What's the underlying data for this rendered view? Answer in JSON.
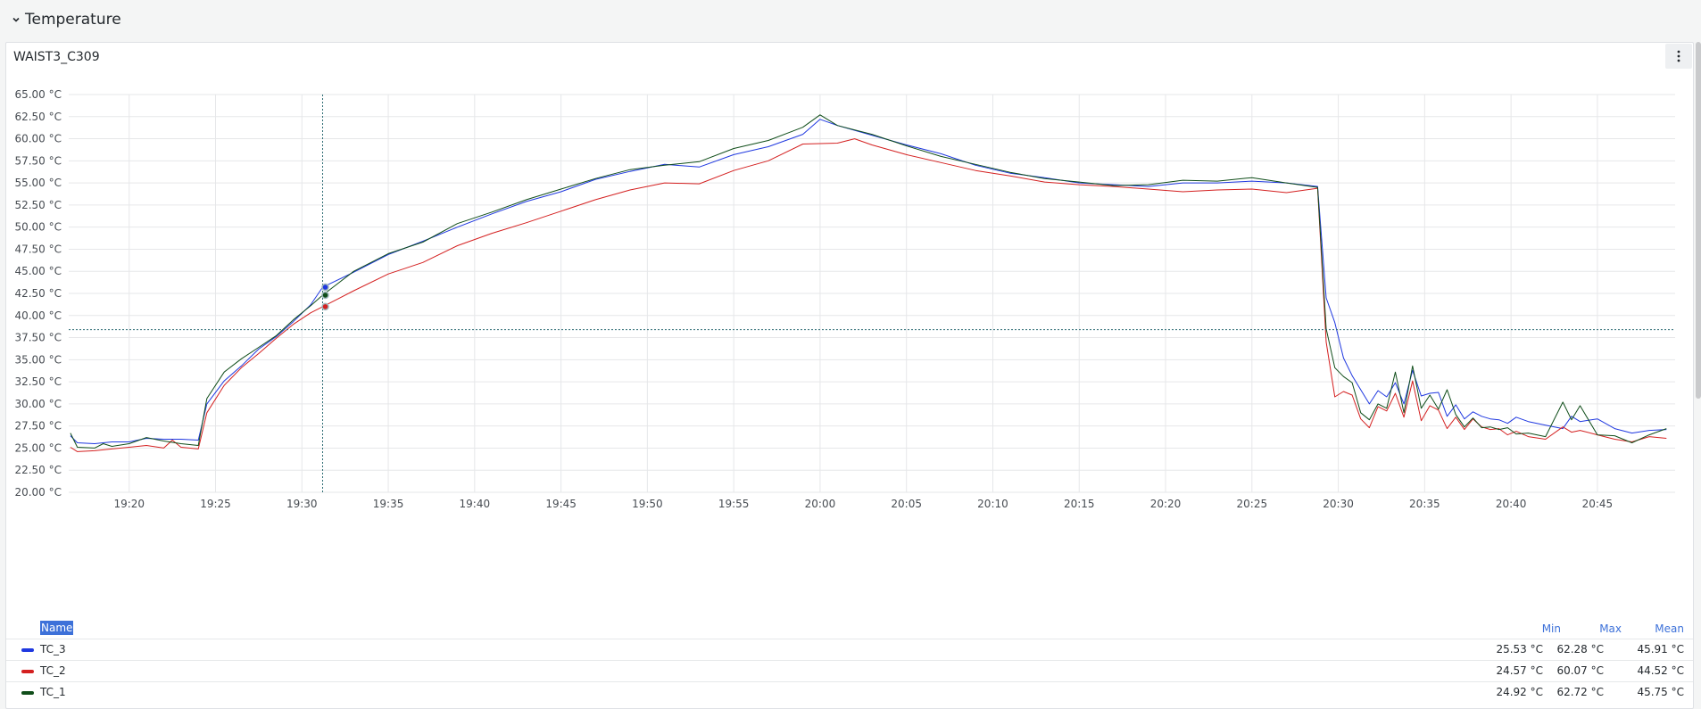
{
  "row": {
    "title": "Temperature"
  },
  "panel": {
    "title": "WAIST3_C309"
  },
  "legend": {
    "name_header": "Name",
    "columns": [
      "Min",
      "Max",
      "Mean"
    ],
    "rows": [
      {
        "name": "TC_3",
        "color": "#1f38e0",
        "min": "25.53 °C",
        "max": "62.28 °C",
        "mean": "45.91 °C"
      },
      {
        "name": "TC_2",
        "color": "#d42020",
        "min": "24.57 °C",
        "max": "60.07 °C",
        "mean": "44.52 °C"
      },
      {
        "name": "TC_1",
        "color": "#0f4d19",
        "min": "24.92 °C",
        "max": "62.72 °C",
        "mean": "45.75 °C"
      }
    ]
  },
  "chart_data": {
    "type": "line",
    "y_unit": "°C",
    "ylim": [
      20,
      65
    ],
    "y_ticks": [
      "20.00 °C",
      "22.50 °C",
      "25.00 °C",
      "27.50 °C",
      "30.00 °C",
      "32.50 °C",
      "35.00 °C",
      "37.50 °C",
      "40.00 °C",
      "42.50 °C",
      "45.00 °C",
      "47.50 °C",
      "50.00 °C",
      "52.50 °C",
      "55.00 °C",
      "57.50 °C",
      "60.00 °C",
      "62.50 °C",
      "65.00 °C"
    ],
    "x_ticks": [
      "19:20",
      "19:25",
      "19:30",
      "19:35",
      "19:40",
      "19:45",
      "19:50",
      "19:55",
      "20:00",
      "20:05",
      "20:10",
      "20:15",
      "20:20",
      "20:25",
      "20:30",
      "20:35",
      "20:40",
      "20:45"
    ],
    "x_range": [
      "19:16.5",
      "20:49.5"
    ],
    "grid": true,
    "crosshair": {
      "x": "19:31.2",
      "y": 38.4
    },
    "hover_values": {
      "TC_3": 43.2,
      "TC_1": 42.3,
      "TC_2": 41.0
    },
    "series": [
      {
        "name": "TC_3",
        "color": "#1f38e0",
        "points": [
          [
            "19:16.6",
            26.4
          ],
          [
            "19:17.0",
            25.6
          ],
          [
            "19:18.0",
            25.5
          ],
          [
            "19:19.0",
            25.7
          ],
          [
            "19:20.0",
            25.7
          ],
          [
            "19:21.0",
            26.1
          ],
          [
            "19:22.0",
            26.0
          ],
          [
            "19:23.0",
            26.0
          ],
          [
            "19:24.0",
            25.9
          ],
          [
            "19:24.5",
            30.0
          ],
          [
            "19:25.5",
            32.6
          ],
          [
            "19:26.5",
            34.3
          ],
          [
            "19:27.5",
            36.2
          ],
          [
            "19:28.5",
            37.6
          ],
          [
            "19:29.5",
            39.3
          ],
          [
            "19:30.5",
            41.2
          ],
          [
            "19:31.2",
            43.2
          ],
          [
            "19:33",
            44.9
          ],
          [
            "19:35",
            46.9
          ],
          [
            "19:37",
            48.4
          ],
          [
            "19:39",
            50.0
          ],
          [
            "19:41",
            51.5
          ],
          [
            "19:43",
            52.9
          ],
          [
            "19:45",
            54.0
          ],
          [
            "19:47",
            55.4
          ],
          [
            "19:49",
            56.3
          ],
          [
            "19:51",
            57.1
          ],
          [
            "19:53",
            56.8
          ],
          [
            "19:55",
            58.2
          ],
          [
            "19:57",
            59.1
          ],
          [
            "19:59",
            60.5
          ],
          [
            "20:00",
            62.2
          ],
          [
            "20:01",
            61.5
          ],
          [
            "20:03",
            60.4
          ],
          [
            "20:05",
            59.3
          ],
          [
            "20:07",
            58.3
          ],
          [
            "20:09",
            57.0
          ],
          [
            "20:11",
            56.1
          ],
          [
            "20:13",
            55.6
          ],
          [
            "20:15",
            55.0
          ],
          [
            "20:17",
            54.8
          ],
          [
            "20:19",
            54.6
          ],
          [
            "20:21",
            55.0
          ],
          [
            "20:23",
            55.0
          ],
          [
            "20:25",
            55.2
          ],
          [
            "20:27",
            55.0
          ],
          [
            "20:28.8",
            54.6
          ],
          [
            "20:29.3",
            42.0
          ],
          [
            "20:29.8",
            39.2
          ],
          [
            "20:30.3",
            35.2
          ],
          [
            "20:30.8",
            33.2
          ],
          [
            "20:31.3",
            31.6
          ],
          [
            "20:31.8",
            30.0
          ],
          [
            "20:32.3",
            31.5
          ],
          [
            "20:32.8",
            30.8
          ],
          [
            "20:33.3",
            32.4
          ],
          [
            "20:33.8",
            30.0
          ],
          [
            "20:34.3",
            33.8
          ],
          [
            "20:34.8",
            30.9
          ],
          [
            "20:35.3",
            31.2
          ],
          [
            "20:35.8",
            31.3
          ],
          [
            "20:36.3",
            28.6
          ],
          [
            "20:36.8",
            29.9
          ],
          [
            "20:37.3",
            28.3
          ],
          [
            "20:37.8",
            29.1
          ],
          [
            "20:38.3",
            28.6
          ],
          [
            "20:38.8",
            28.3
          ],
          [
            "20:39.3",
            28.2
          ],
          [
            "20:39.8",
            27.8
          ],
          [
            "20:40.3",
            28.5
          ],
          [
            "20:41",
            28.0
          ],
          [
            "20:42",
            27.6
          ],
          [
            "20:43",
            27.2
          ],
          [
            "20:43.5",
            28.6
          ],
          [
            "20:44",
            28.0
          ],
          [
            "20:45",
            28.3
          ],
          [
            "20:46",
            27.2
          ],
          [
            "20:47",
            26.7
          ],
          [
            "20:48",
            27.0
          ],
          [
            "20:49",
            27.1
          ]
        ]
      },
      {
        "name": "TC_2",
        "color": "#d42020",
        "points": [
          [
            "19:16.6",
            25.1
          ],
          [
            "19:17.0",
            24.6
          ],
          [
            "19:18.0",
            24.7
          ],
          [
            "19:19.0",
            24.9
          ],
          [
            "19:20.0",
            25.1
          ],
          [
            "19:21.0",
            25.3
          ],
          [
            "19:22.0",
            25.0
          ],
          [
            "19:22.5",
            25.9
          ],
          [
            "19:23.0",
            25.1
          ],
          [
            "19:24.0",
            24.9
          ],
          [
            "19:24.5",
            29.0
          ],
          [
            "19:25.5",
            32.1
          ],
          [
            "19:26.5",
            34.1
          ],
          [
            "19:27.5",
            35.7
          ],
          [
            "19:28.5",
            37.4
          ],
          [
            "19:29.5",
            39.0
          ],
          [
            "19:30.5",
            40.3
          ],
          [
            "19:31.2",
            41.0
          ],
          [
            "19:33",
            42.8
          ],
          [
            "19:35",
            44.7
          ],
          [
            "19:37",
            46.0
          ],
          [
            "19:39",
            47.9
          ],
          [
            "19:41",
            49.3
          ],
          [
            "19:43",
            50.5
          ],
          [
            "19:45",
            51.8
          ],
          [
            "19:47",
            53.1
          ],
          [
            "19:49",
            54.2
          ],
          [
            "19:51",
            55.0
          ],
          [
            "19:53",
            54.9
          ],
          [
            "19:55",
            56.4
          ],
          [
            "19:57",
            57.5
          ],
          [
            "19:59",
            59.4
          ],
          [
            "20:01",
            59.5
          ],
          [
            "20:02",
            60.0
          ],
          [
            "20:03",
            59.3
          ],
          [
            "20:05",
            58.2
          ],
          [
            "20:07",
            57.3
          ],
          [
            "20:09",
            56.4
          ],
          [
            "20:11",
            55.8
          ],
          [
            "20:13",
            55.1
          ],
          [
            "20:15",
            54.8
          ],
          [
            "20:17",
            54.6
          ],
          [
            "20:19",
            54.3
          ],
          [
            "20:21",
            54.0
          ],
          [
            "20:23",
            54.2
          ],
          [
            "20:25",
            54.3
          ],
          [
            "20:27",
            53.9
          ],
          [
            "20:28.8",
            54.4
          ],
          [
            "20:29.3",
            37.0
          ],
          [
            "20:29.8",
            30.8
          ],
          [
            "20:30.3",
            31.4
          ],
          [
            "20:30.8",
            31.0
          ],
          [
            "20:31.3",
            28.3
          ],
          [
            "20:31.8",
            27.3
          ],
          [
            "20:32.3",
            29.7
          ],
          [
            "20:32.8",
            29.2
          ],
          [
            "20:33.3",
            31.2
          ],
          [
            "20:33.8",
            28.5
          ],
          [
            "20:34.3",
            32.6
          ],
          [
            "20:34.8",
            28.1
          ],
          [
            "20:35.3",
            29.8
          ],
          [
            "20:35.8",
            29.3
          ],
          [
            "20:36.3",
            27.2
          ],
          [
            "20:36.8",
            28.5
          ],
          [
            "20:37.3",
            27.1
          ],
          [
            "20:37.8",
            28.3
          ],
          [
            "20:38.3",
            27.4
          ],
          [
            "20:38.8",
            27.1
          ],
          [
            "20:39.3",
            27.2
          ],
          [
            "20:39.8",
            26.5
          ],
          [
            "20:40.3",
            26.9
          ],
          [
            "20:41",
            26.3
          ],
          [
            "20:42",
            26.0
          ],
          [
            "20:43",
            27.4
          ],
          [
            "20:43.5",
            26.8
          ],
          [
            "20:44",
            27.0
          ],
          [
            "20:45",
            26.5
          ],
          [
            "20:46",
            26.0
          ],
          [
            "20:47",
            25.7
          ],
          [
            "20:48",
            26.3
          ],
          [
            "20:49",
            26.1
          ]
        ]
      },
      {
        "name": "TC_1",
        "color": "#0f4d19",
        "points": [
          [
            "19:16.6",
            26.7
          ],
          [
            "19:17.0",
            25.1
          ],
          [
            "19:18.0",
            25.0
          ],
          [
            "19:18.5",
            25.5
          ],
          [
            "19:19.0",
            25.2
          ],
          [
            "19:20.0",
            25.5
          ],
          [
            "19:21.0",
            26.2
          ],
          [
            "19:22.0",
            25.8
          ],
          [
            "19:23.0",
            25.5
          ],
          [
            "19:24.0",
            25.3
          ],
          [
            "19:24.5",
            30.6
          ],
          [
            "19:25.5",
            33.6
          ],
          [
            "19:26.5",
            35.1
          ],
          [
            "19:27.5",
            36.4
          ],
          [
            "19:28.5",
            37.7
          ],
          [
            "19:29.5",
            39.5
          ],
          [
            "19:30.5",
            41.1
          ],
          [
            "19:31.2",
            42.3
          ],
          [
            "19:33",
            45.0
          ],
          [
            "19:35",
            47.0
          ],
          [
            "19:37",
            48.3
          ],
          [
            "19:39",
            50.4
          ],
          [
            "19:41",
            51.7
          ],
          [
            "19:43",
            53.1
          ],
          [
            "19:45",
            54.3
          ],
          [
            "19:47",
            55.5
          ],
          [
            "19:49",
            56.5
          ],
          [
            "19:51",
            57.0
          ],
          [
            "19:53",
            57.4
          ],
          [
            "19:55",
            58.9
          ],
          [
            "19:57",
            59.8
          ],
          [
            "19:59",
            61.3
          ],
          [
            "20:00",
            62.7
          ],
          [
            "20:01",
            61.5
          ],
          [
            "20:03",
            60.5
          ],
          [
            "20:05",
            59.2
          ],
          [
            "20:07",
            58.0
          ],
          [
            "20:09",
            57.1
          ],
          [
            "20:11",
            56.2
          ],
          [
            "20:13",
            55.5
          ],
          [
            "20:15",
            55.1
          ],
          [
            "20:17",
            54.7
          ],
          [
            "20:19",
            54.8
          ],
          [
            "20:21",
            55.3
          ],
          [
            "20:23",
            55.2
          ],
          [
            "20:25",
            55.6
          ],
          [
            "20:27",
            55.0
          ],
          [
            "20:28.8",
            54.5
          ],
          [
            "20:29.3",
            38.5
          ],
          [
            "20:29.8",
            34.1
          ],
          [
            "20:30.3",
            33.1
          ],
          [
            "20:30.8",
            32.4
          ],
          [
            "20:31.3",
            29.0
          ],
          [
            "20:31.8",
            28.2
          ],
          [
            "20:32.3",
            30.0
          ],
          [
            "20:32.8",
            29.5
          ],
          [
            "20:33.3",
            33.6
          ],
          [
            "20:33.8",
            29.0
          ],
          [
            "20:34.3",
            34.3
          ],
          [
            "20:34.8",
            29.5
          ],
          [
            "20:35.3",
            31.0
          ],
          [
            "20:35.8",
            29.4
          ],
          [
            "20:36.3",
            31.6
          ],
          [
            "20:36.8",
            28.8
          ],
          [
            "20:37.3",
            27.4
          ],
          [
            "20:37.8",
            28.4
          ],
          [
            "20:38.3",
            27.3
          ],
          [
            "20:38.8",
            27.4
          ],
          [
            "20:39.3",
            27.1
          ],
          [
            "20:39.8",
            27.3
          ],
          [
            "20:40.3",
            26.6
          ],
          [
            "20:41",
            26.7
          ],
          [
            "20:42",
            26.3
          ],
          [
            "20:43",
            30.2
          ],
          [
            "20:43.5",
            28.2
          ],
          [
            "20:44",
            29.8
          ],
          [
            "20:45",
            26.5
          ],
          [
            "20:46",
            26.4
          ],
          [
            "20:47",
            25.6
          ],
          [
            "20:48",
            26.5
          ],
          [
            "20:49",
            27.2
          ]
        ]
      }
    ]
  }
}
